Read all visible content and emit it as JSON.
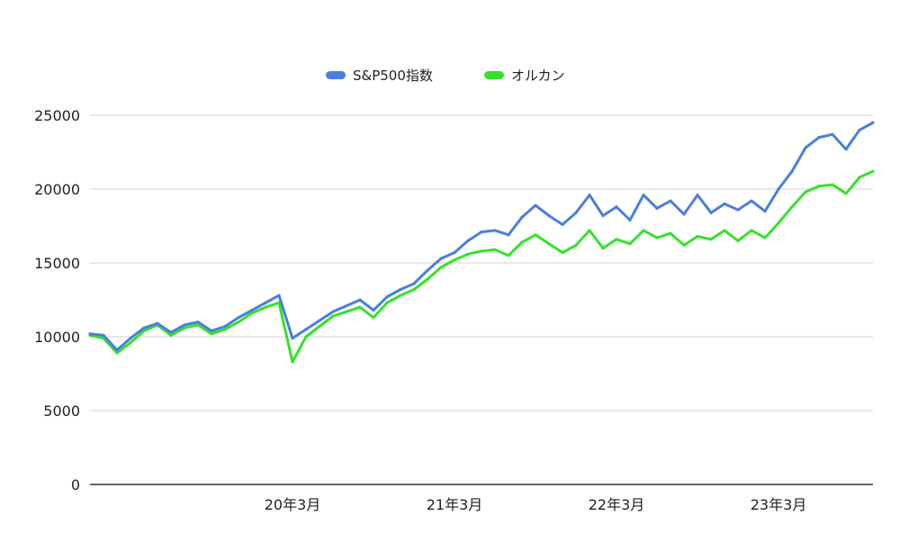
{
  "chart_data": {
    "type": "line",
    "title": "",
    "xlabel": "",
    "ylabel": "",
    "ylim": [
      0,
      25000
    ],
    "yticks": [
      0,
      5000,
      10000,
      15000,
      20000,
      25000
    ],
    "ytick_labels": [
      "0",
      "5000",
      "10000",
      "15000",
      "20000",
      "25000"
    ],
    "xlim": [
      0,
      58
    ],
    "xticks": [
      {
        "x": 15,
        "label": "20年3月"
      },
      {
        "x": 27,
        "label": "21年3月"
      },
      {
        "x": 39,
        "label": "22年3月"
      },
      {
        "x": 51,
        "label": "23年3月"
      }
    ],
    "grid": true,
    "legend_position": "top",
    "x": [
      0,
      1,
      2,
      3,
      4,
      5,
      6,
      7,
      8,
      9,
      10,
      11,
      12,
      13,
      14,
      15,
      16,
      17,
      18,
      19,
      20,
      21,
      22,
      23,
      24,
      25,
      26,
      27,
      28,
      29,
      30,
      31,
      32,
      33,
      34,
      35,
      36,
      37,
      38,
      39,
      40,
      41,
      42,
      43,
      44,
      45,
      46,
      47,
      48,
      49,
      50,
      51,
      52,
      53,
      54,
      55,
      56,
      57,
      58
    ],
    "series": [
      {
        "name": "S&P500指数",
        "color": "#4a7fdc",
        "values": [
          10200,
          10100,
          9100,
          9900,
          10600,
          10900,
          10300,
          10800,
          11000,
          10400,
          10700,
          11300,
          11800,
          12300,
          12800,
          9900,
          10500,
          11100,
          11700,
          12100,
          12500,
          11800,
          12700,
          13200,
          13600,
          14500,
          15300,
          15700,
          16500,
          17100,
          17200,
          16900,
          18100,
          18900,
          18200,
          17600,
          18400,
          19600,
          18200,
          18800,
          17900,
          19600,
          18700,
          19200,
          18300,
          19600,
          18400,
          19000,
          18600,
          19200,
          18500,
          20000,
          21200,
          22800,
          23500,
          23700,
          22700,
          24000,
          24500
        ]
      },
      {
        "name": "オルカン",
        "color": "#35e22a",
        "values": [
          10100,
          9900,
          8900,
          9600,
          10400,
          10800,
          10100,
          10600,
          10800,
          10200,
          10500,
          11000,
          11600,
          12000,
          12300,
          8300,
          10000,
          10700,
          11400,
          11700,
          12000,
          11300,
          12300,
          12800,
          13200,
          13900,
          14700,
          15200,
          15600,
          15800,
          15900,
          15500,
          16400,
          16900,
          16300,
          15700,
          16200,
          17200,
          16000,
          16600,
          16300,
          17200,
          16700,
          17000,
          16200,
          16800,
          16600,
          17200,
          16500,
          17200,
          16700,
          17700,
          18800,
          19800,
          20200,
          20300,
          19700,
          20800,
          21200
        ]
      }
    ]
  }
}
